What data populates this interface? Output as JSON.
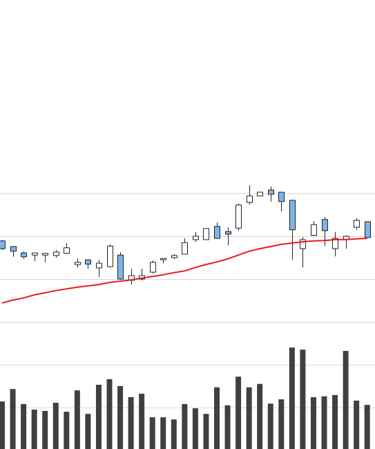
{
  "chart_data": {
    "type": "candlestick",
    "open": [
      38.9,
      37.6,
      36.1,
      35.6,
      35.6,
      35.5,
      36.0,
      33.4,
      34.5,
      32.6,
      32.9,
      35.6,
      29.7,
      30.0,
      31.6,
      34.5,
      35.0,
      35.8,
      39.2,
      39.2,
      42.3,
      41.1,
      41.9,
      47.9,
      49.4,
      50.8,
      50.3,
      48.4,
      37.1,
      40.2,
      43.9,
      37.1,
      39.2,
      42.1,
      43.4
    ],
    "high": [
      39.2,
      37.7,
      36.5,
      36.1,
      36.0,
      36.8,
      38.4,
      34.8,
      34.5,
      34.5,
      38.1,
      36.3,
      32.4,
      32.4,
      34.4,
      34.8,
      35.8,
      39.5,
      41.0,
      41.8,
      43.2,
      42.1,
      47.6,
      51.9,
      50.3,
      51.6,
      50.3,
      48.5,
      39.8,
      43.5,
      44.5,
      41.0,
      40.2,
      44.2,
      43.4
    ],
    "low": [
      36.8,
      35.2,
      34.7,
      34.2,
      33.9,
      35.0,
      35.8,
      32.7,
      32.4,
      30.5,
      32.7,
      29.8,
      28.7,
      29.7,
      31.3,
      33.7,
      34.7,
      35.8,
      38.7,
      39.2,
      39.4,
      37.9,
      41.3,
      47.4,
      49.4,
      48.1,
      45.8,
      34.5,
      32.7,
      40.0,
      37.7,
      35.3,
      37.1,
      41.5,
      39.7
    ],
    "close": [
      37.1,
      36.5,
      35.2,
      36.1,
      36.0,
      36.3,
      37.3,
      33.9,
      33.5,
      33.7,
      37.7,
      30.0,
      30.8,
      30.8,
      33.9,
      34.8,
      35.5,
      38.5,
      40.0,
      41.8,
      39.5,
      40.5,
      47.3,
      49.4,
      50.3,
      49.8,
      48.1,
      41.5,
      39.2,
      42.7,
      41.3,
      39.5,
      40.0,
      43.7,
      39.7
    ],
    "ma": [
      24.4,
      25.1,
      25.6,
      26.3,
      26.8,
      27.3,
      27.7,
      28.1,
      28.4,
      28.7,
      29.2,
      29.5,
      29.8,
      30.2,
      30.6,
      31.0,
      31.5,
      31.9,
      32.7,
      33.4,
      34.0,
      34.7,
      35.6,
      36.5,
      37.1,
      37.6,
      38.1,
      38.4,
      38.7,
      38.9,
      39.0,
      39.2,
      39.2,
      39.4,
      39.5
    ],
    "volume": [
      11.1,
      14.0,
      10.5,
      9.2,
      8.9,
      10.8,
      8.7,
      13.7,
      8.2,
      15.0,
      16.3,
      14.7,
      12.1,
      12.9,
      7.4,
      7.4,
      6.9,
      10.5,
      9.5,
      8.2,
      14.4,
      10.2,
      16.9,
      14.4,
      15.2,
      10.6,
      11.6,
      23.7,
      23.2,
      12.1,
      12.3,
      12.6,
      22.9,
      11.3,
      10.3
    ],
    "up_color": "#ffffff",
    "down_color": "#7cb5ec",
    "ma_color": "#e8191c",
    "volume_color": "#404040",
    "ylim": [
      -9.68,
      95.16
    ],
    "yticks": [
      0,
      10,
      20,
      30,
      40,
      50
    ],
    "y2lim": [
      0,
      104.84
    ],
    "grid": true
  }
}
